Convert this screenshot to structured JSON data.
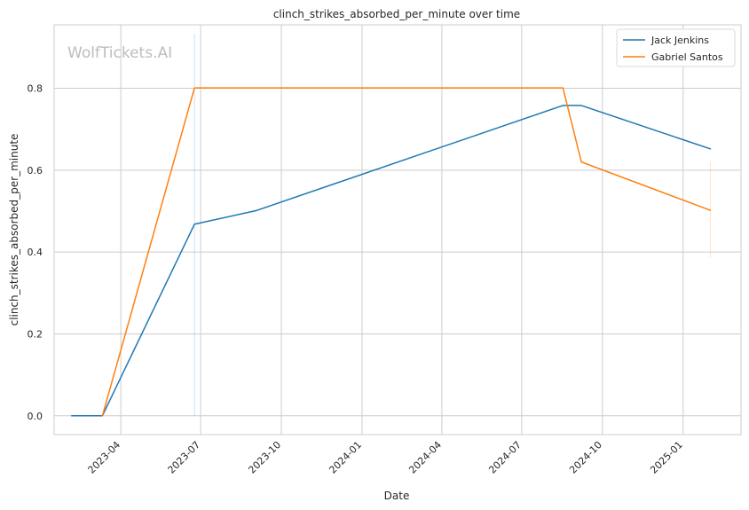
{
  "chart_data": {
    "type": "line",
    "title": "clinch_strikes_absorbed_per_minute over time",
    "xlabel": "Date",
    "ylabel": "clinch_strikes_absorbed_per_minute",
    "watermark": "WolfTickets.AI",
    "xlim": [
      "2023-01-15",
      "2025-03-08"
    ],
    "ylim": [
      -0.046,
      0.955
    ],
    "x_ticks": [
      "2023-04-01",
      "2023-07-01",
      "2023-10-01",
      "2024-01-01",
      "2024-04-01",
      "2024-07-01",
      "2024-10-01",
      "2025-01-01"
    ],
    "x_tick_labels": [
      "2023-04",
      "2023-07",
      "2023-10",
      "2024-01",
      "2024-04",
      "2024-07",
      "2024-10",
      "2025-01"
    ],
    "y_ticks": [
      0.0,
      0.2,
      0.4,
      0.6,
      0.8
    ],
    "y_tick_labels": [
      "0.0",
      "0.2",
      "0.4",
      "0.6",
      "0.8"
    ],
    "grid": true,
    "legend_position": "top-right",
    "series": [
      {
        "name": "Jack Jenkins",
        "color": "#1f77b4",
        "x": [
          "2023-02-04",
          "2023-03-11",
          "2023-06-24",
          "2023-09-02",
          "2024-08-17",
          "2024-09-07",
          "2025-02-01"
        ],
        "y": [
          0.0,
          0.0,
          0.468,
          0.501,
          0.758,
          0.758,
          0.652
        ]
      },
      {
        "name": "Gabriel Santos",
        "color": "#ff7f0e",
        "x": [
          "2023-03-11",
          "2023-06-24",
          "2024-08-17",
          "2024-09-07",
          "2025-02-01"
        ],
        "y": [
          0.0,
          0.801,
          0.801,
          0.62,
          0.502
        ]
      }
    ],
    "error_bars": [
      {
        "series": "Jack Jenkins",
        "x": "2023-06-24",
        "y_low": 0.0,
        "y_high": 0.933,
        "color": "#1f77b4"
      },
      {
        "series": "Gabriel Santos",
        "x": "2025-02-01",
        "y_low": 0.385,
        "y_high": 0.62,
        "color": "#ff7f0e"
      }
    ]
  }
}
